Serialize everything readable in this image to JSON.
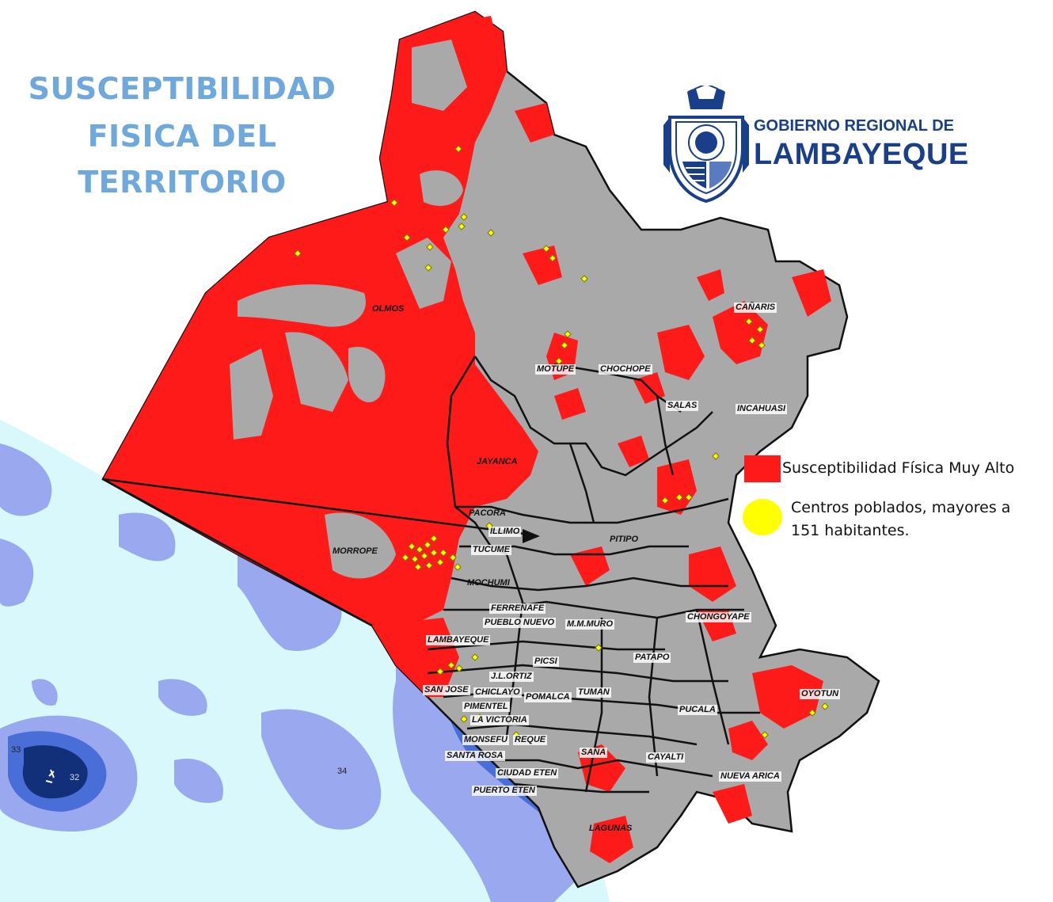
{
  "title": {
    "line1": "SUSCEPTIBILIDAD",
    "line2": "FISICA DEL",
    "line3": "TERRITORIO"
  },
  "logo": {
    "line1": "GOBIERNO REGIONAL DE",
    "line2": "LAMBAYEQUE"
  },
  "legend": {
    "high_label": "Susceptibilidad Física Muy Alto",
    "towns_label_line1": "Centros poblados, mayores  a",
    "towns_label_line2": "151 habitantes."
  },
  "places": {
    "olmos": "OLMOS",
    "motupe": "MOTUPE",
    "chochope": "CHOCHOPE",
    "canaris": "CAÑARIS",
    "salas": "SALAS",
    "incahuasi": "INCAHUASI",
    "jayanca": "JAYANCA",
    "pacora": "PACORA",
    "illimo": "ILLIMO",
    "tucume": "TUCUME",
    "morrope": "MORROPE",
    "mochumi": "MOCHUMI",
    "pitipo": "PITIPO",
    "ferrenafe": "FERREÑAFE",
    "pueblo_nuevo": "PUEBLO NUEVO",
    "manuel_mesones_muro": "M.M.MURO",
    "chongoyape": "CHONGOYAPE",
    "lambayeque": "LAMBAYEQUE",
    "picsi": "PICSI",
    "patapo": "PATAPO",
    "jl_ortiz": "J.L.ORTIZ",
    "san_jose": "SAN JOSE",
    "chiclayo": "CHICLAYO",
    "pomalca": "POMALCA",
    "tuman": "TUMAN",
    "pimentel": "PIMENTEL",
    "la_victoria": "LA VICTORIA",
    "oyotun": "OYOTUN",
    "pucala": "PUCALA",
    "monsefu": "MONSEFU",
    "reque": "REQUE",
    "santa_rosa": "SANTA ROSA",
    "zana": "SAÑA",
    "cayalti": "CAYALTI",
    "nueva_arica": "NUEVA ARICA",
    "ciudad_eten": "CIUDAD ETEN",
    "puerto_eten": "PUERTO ETEN",
    "lagunas": "LAGUNAS"
  },
  "depth_labels": {
    "d33": "33",
    "d32": "32",
    "d34": "34"
  },
  "colors": {
    "title": "#6fa8dc",
    "high_susceptibility": "#ff1a1a",
    "terrain": "#a9a9a9",
    "town_marker": "#ffff00",
    "sea_light": "#d8f8fc",
    "sea_mid": "#9aa8ef",
    "sea_deep": "#4a6ed8",
    "sea_deepest": "#12307a",
    "logo_blue": "#1a3f8a"
  },
  "icons": {
    "logo": "coat-of-arms-icon",
    "high_swatch": "red-square-icon",
    "town_swatch": "yellow-circle-icon",
    "arrow": "arrow-icon"
  }
}
